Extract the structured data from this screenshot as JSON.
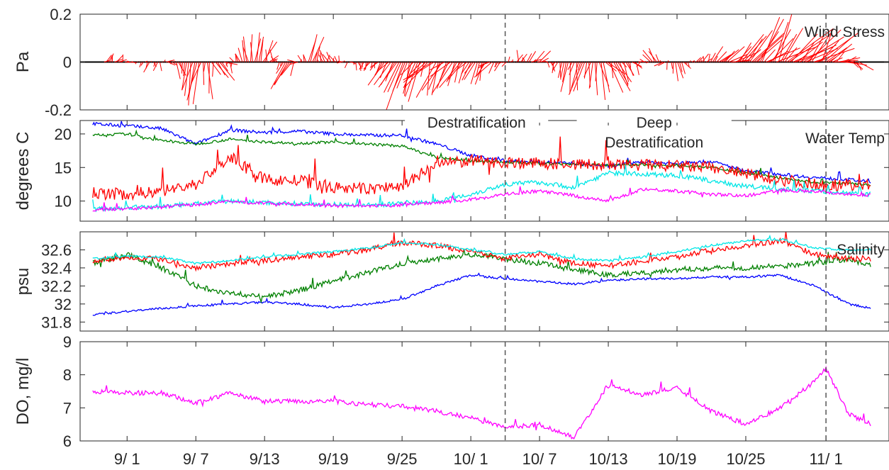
{
  "figure": {
    "date_ticks": [
      {
        "label": "9/ 1",
        "day": 1
      },
      {
        "label": "9/ 7",
        "day": 7
      },
      {
        "label": "9/13",
        "day": 13
      },
      {
        "label": "9/19",
        "day": 19
      },
      {
        "label": "9/25",
        "day": 25
      },
      {
        "label": "10/ 1",
        "day": 31
      },
      {
        "label": "10/ 7",
        "day": 37
      },
      {
        "label": "10/13",
        "day": 43
      },
      {
        "label": "10/19",
        "day": 49
      },
      {
        "label": "10/25",
        "day": 55
      },
      {
        "label": "11/ 1",
        "day": 62
      }
    ],
    "events": [
      {
        "date": "10/4"
      },
      {
        "date": "11/1"
      }
    ],
    "annotations": [
      {
        "text": "Destratification",
        "lines": [
          "Destratification"
        ],
        "from": "9/25",
        "to": "10/8"
      },
      {
        "text": "Deep Destratification",
        "lines": [
          "Deep",
          "Destratification"
        ],
        "from": "10/10",
        "to": "10/24"
      }
    ]
  },
  "chart_data": [
    {
      "type": "line",
      "title": "Wind Stress",
      "ylabel": "Pa",
      "ylim": [
        -0.2,
        0.2
      ],
      "yticks": [
        "0.2",
        "0",
        "-0.2"
      ],
      "series": [
        {
          "color": "#ff0000",
          "kind": "wind-stress sticks",
          "x": [
            "8/30",
            "9/1",
            "9/3",
            "9/5",
            "9/7",
            "9/9",
            "9/11",
            "9/13",
            "9/15",
            "9/17",
            "9/19",
            "9/21",
            "9/23",
            "9/25",
            "9/27",
            "9/29",
            "10/1",
            "10/3",
            "10/5",
            "10/7",
            "10/9",
            "10/11",
            "10/13",
            "10/15",
            "10/17",
            "10/19",
            "10/21",
            "10/23",
            "10/25",
            "10/27",
            "10/29",
            "10/31",
            "11/2",
            "11/4"
          ],
          "east": [
            0.02,
            0.01,
            -0.01,
            0.03,
            -0.04,
            0.05,
            -0.03,
            0.04,
            -0.05,
            0.03,
            -0.02,
            0.01,
            -0.04,
            -0.06,
            -0.08,
            -0.07,
            -0.05,
            -0.04,
            0.02,
            0.03,
            -0.02,
            -0.03,
            0.06,
            0.04,
            -0.05,
            0.02,
            0.01,
            0.04,
            0.1,
            0.12,
            0.15,
            0.12,
            0.08,
            0.04
          ],
          "north": [
            0.03,
            0.02,
            -0.03,
            -0.02,
            -0.16,
            -0.09,
            0.05,
            0.12,
            -0.09,
            0.1,
            0.02,
            -0.03,
            -0.03,
            -0.14,
            -0.12,
            -0.1,
            -0.08,
            -0.05,
            0.04,
            0.03,
            -0.08,
            -0.1,
            -0.12,
            -0.05,
            0.04,
            -0.06,
            0.03,
            0.05,
            0.1,
            0.14,
            0.12,
            0.09,
            0.05,
            -0.06
          ]
        }
      ]
    },
    {
      "type": "line",
      "title": "Water Temp",
      "ylabel": "degrees C",
      "ylim": [
        7,
        22
      ],
      "yticks": [
        10,
        15,
        20
      ],
      "series": [
        {
          "color": "#0000ff",
          "x": [
            "8/29",
            "9/1",
            "9/4",
            "9/7",
            "9/10",
            "9/13",
            "9/16",
            "9/19",
            "9/22",
            "9/25",
            "9/28",
            "10/1",
            "10/4",
            "10/7",
            "10/10",
            "10/13",
            "10/16",
            "10/19",
            "10/22",
            "10/25",
            "10/28",
            "10/31",
            "11/3",
            "11/5"
          ],
          "y": [
            21.5,
            21.2,
            20.8,
            18.5,
            20.6,
            20.2,
            20.4,
            20.0,
            19.8,
            19.8,
            18.5,
            16.8,
            16.0,
            15.8,
            15.6,
            15.2,
            15.8,
            15.6,
            15.9,
            14.5,
            14.0,
            13.5,
            13.2,
            12.8
          ]
        },
        {
          "color": "#008000",
          "x": [
            "8/29",
            "9/1",
            "9/4",
            "9/7",
            "9/10",
            "9/13",
            "9/16",
            "9/19",
            "9/22",
            "9/25",
            "9/28",
            "10/1",
            "10/4",
            "10/7",
            "10/10",
            "10/13",
            "10/16",
            "10/19",
            "10/22",
            "10/25",
            "10/28",
            "10/31",
            "11/3",
            "11/5"
          ],
          "y": [
            19.8,
            20.0,
            19.0,
            18.5,
            19.2,
            18.8,
            18.6,
            18.8,
            18.5,
            18.2,
            16.5,
            16.0,
            15.8,
            15.6,
            15.5,
            15.3,
            15.4,
            15.3,
            15.0,
            14.2,
            13.5,
            12.8,
            12.6,
            12.4
          ]
        },
        {
          "color": "#ff0000",
          "x": [
            "8/29",
            "9/1",
            "9/4",
            "9/7",
            "9/10",
            "9/13",
            "9/16",
            "9/19",
            "9/22",
            "9/25",
            "9/28",
            "10/1",
            "10/4",
            "10/7",
            "10/10",
            "10/13",
            "10/16",
            "10/19",
            "10/22",
            "10/25",
            "10/28",
            "10/31",
            "11/3",
            "11/5"
          ],
          "y": [
            11.2,
            11.0,
            11.5,
            12.5,
            16.5,
            13.2,
            13.0,
            12.0,
            11.8,
            12.2,
            15.5,
            16.0,
            15.8,
            15.6,
            15.5,
            15.3,
            15.4,
            15.2,
            15.0,
            14.0,
            13.2,
            12.5,
            12.4,
            12.3
          ]
        },
        {
          "color": "#00e6e6",
          "x": [
            "8/29",
            "9/1",
            "9/4",
            "9/7",
            "9/10",
            "9/13",
            "9/16",
            "9/19",
            "9/22",
            "9/25",
            "9/28",
            "10/1",
            "10/4",
            "10/7",
            "10/10",
            "10/13",
            "10/16",
            "10/19",
            "10/22",
            "10/25",
            "10/28",
            "10/31",
            "11/3",
            "11/5"
          ],
          "y": [
            8.8,
            9.0,
            9.2,
            9.6,
            10.0,
            9.8,
            9.6,
            9.5,
            9.4,
            9.6,
            10.0,
            11.0,
            12.5,
            12.8,
            12.0,
            14.2,
            14.0,
            13.8,
            13.0,
            12.2,
            11.8,
            11.5,
            11.2,
            11.0
          ]
        },
        {
          "color": "#ff00ff",
          "x": [
            "8/29",
            "9/1",
            "9/4",
            "9/7",
            "9/10",
            "9/13",
            "9/16",
            "9/19",
            "9/22",
            "9/25",
            "9/28",
            "10/1",
            "10/4",
            "10/7",
            "10/10",
            "10/13",
            "10/16",
            "10/19",
            "10/22",
            "10/25",
            "10/28",
            "10/31",
            "11/3",
            "11/5"
          ],
          "y": [
            8.7,
            8.9,
            9.1,
            9.5,
            9.9,
            9.7,
            9.5,
            9.3,
            9.2,
            9.4,
            9.8,
            10.2,
            11.0,
            11.5,
            10.8,
            10.0,
            11.8,
            11.5,
            11.0,
            10.8,
            11.6,
            11.5,
            11.0,
            10.9
          ]
        }
      ]
    },
    {
      "type": "line",
      "title": "Salinity",
      "ylabel": "psu",
      "ylim": [
        31.7,
        32.8
      ],
      "yticks": [
        "32.6",
        "32.4",
        "32.2",
        "32",
        "31.8"
      ],
      "series": [
        {
          "color": "#0000ff",
          "x": [
            "8/29",
            "9/1",
            "9/4",
            "9/7",
            "9/10",
            "9/13",
            "9/16",
            "9/19",
            "9/22",
            "9/25",
            "9/28",
            "10/1",
            "10/4",
            "10/7",
            "10/10",
            "10/13",
            "10/16",
            "10/19",
            "10/22",
            "10/25",
            "10/28",
            "10/31",
            "11/3",
            "11/5"
          ],
          "y": [
            31.88,
            31.92,
            31.95,
            31.98,
            32.0,
            32.02,
            32.0,
            31.96,
            32.0,
            32.05,
            32.2,
            32.32,
            32.28,
            32.25,
            32.22,
            32.26,
            32.28,
            32.28,
            32.3,
            32.3,
            32.32,
            32.2,
            32.0,
            31.95
          ]
        },
        {
          "color": "#008000",
          "x": [
            "8/29",
            "9/1",
            "9/4",
            "9/7",
            "9/10",
            "9/13",
            "9/16",
            "9/19",
            "9/22",
            "9/25",
            "9/28",
            "10/1",
            "10/4",
            "10/7",
            "10/10",
            "10/13",
            "10/16",
            "10/19",
            "10/22",
            "10/25",
            "10/28",
            "10/31",
            "11/3",
            "11/5"
          ],
          "y": [
            32.45,
            32.55,
            32.4,
            32.2,
            32.12,
            32.08,
            32.15,
            32.25,
            32.35,
            32.45,
            32.5,
            32.55,
            32.5,
            32.45,
            32.38,
            32.32,
            32.35,
            32.38,
            32.4,
            32.4,
            32.42,
            32.45,
            32.5,
            32.42
          ]
        },
        {
          "color": "#ff0000",
          "x": [
            "8/29",
            "9/1",
            "9/4",
            "9/7",
            "9/10",
            "9/13",
            "9/16",
            "9/19",
            "9/22",
            "9/25",
            "9/28",
            "10/1",
            "10/4",
            "10/7",
            "10/10",
            "10/13",
            "10/16",
            "10/19",
            "10/22",
            "10/25",
            "10/28",
            "10/31",
            "11/3",
            "11/5"
          ],
          "y": [
            32.48,
            32.52,
            32.5,
            32.4,
            32.45,
            32.48,
            32.52,
            32.55,
            32.6,
            32.68,
            32.65,
            32.58,
            32.5,
            32.55,
            32.45,
            32.42,
            32.48,
            32.52,
            32.6,
            32.65,
            32.7,
            32.55,
            32.5,
            32.5
          ]
        },
        {
          "color": "#00e6e6",
          "x": [
            "8/29",
            "9/1",
            "9/4",
            "9/7",
            "9/10",
            "9/13",
            "9/16",
            "9/19",
            "9/22",
            "9/25",
            "9/28",
            "10/1",
            "10/4",
            "10/7",
            "10/10",
            "10/13",
            "10/16",
            "10/19",
            "10/22",
            "10/25",
            "10/28",
            "10/31",
            "11/3",
            "11/5"
          ],
          "y": [
            32.5,
            32.53,
            32.52,
            32.45,
            32.48,
            32.52,
            32.55,
            32.58,
            32.62,
            32.68,
            32.66,
            32.6,
            32.55,
            32.58,
            32.5,
            32.48,
            32.52,
            32.58,
            32.65,
            32.7,
            32.72,
            32.62,
            32.6,
            32.6
          ]
        }
      ]
    },
    {
      "type": "line",
      "ylabel": "DO, mg/l",
      "ylim": [
        6,
        9
      ],
      "yticks": [
        6,
        7,
        8,
        9
      ],
      "series": [
        {
          "color": "#ff00ff",
          "x": [
            "8/29",
            "9/1",
            "9/4",
            "9/7",
            "9/10",
            "9/13",
            "9/16",
            "9/19",
            "9/22",
            "9/25",
            "9/28",
            "10/1",
            "10/4",
            "10/7",
            "10/10",
            "10/13",
            "10/16",
            "10/19",
            "10/22",
            "10/25",
            "10/28",
            "10/31",
            "11/1",
            "11/3",
            "11/5"
          ],
          "y": [
            7.5,
            7.45,
            7.45,
            7.15,
            7.45,
            7.2,
            7.2,
            7.2,
            7.1,
            7.05,
            6.9,
            6.7,
            6.4,
            6.5,
            6.1,
            7.7,
            7.4,
            7.6,
            6.9,
            6.5,
            7.0,
            7.8,
            8.2,
            6.8,
            6.5
          ]
        }
      ]
    }
  ]
}
